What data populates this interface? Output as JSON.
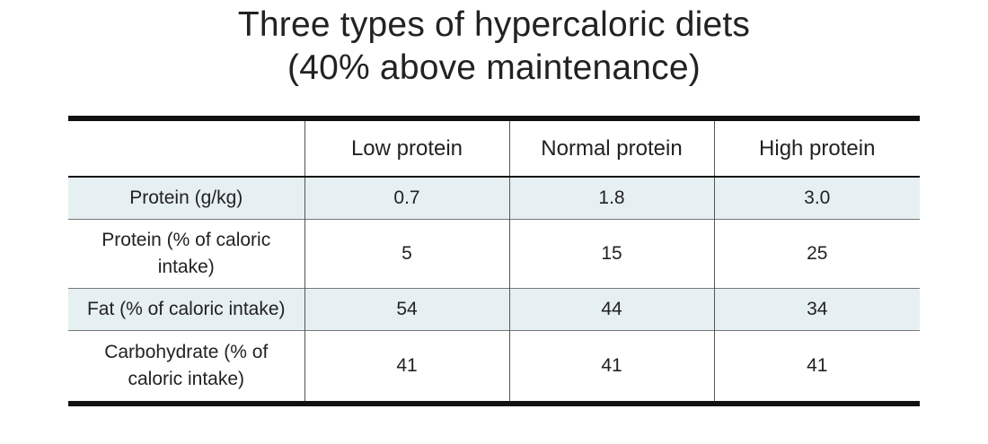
{
  "title": {
    "line1": "Three types of hypercaloric diets",
    "line2": "(40% above maintenance)"
  },
  "table": {
    "headers": [
      "",
      "Low protein",
      "Normal protein",
      "High protein"
    ],
    "rows": [
      {
        "label": "Protein (g/kg)",
        "values": [
          "0.7",
          "1.8",
          "3.0"
        ]
      },
      {
        "label": "Protein (% of caloric intake)",
        "values": [
          "5",
          "15",
          "25"
        ]
      },
      {
        "label": "Fat (% of caloric intake)",
        "values": [
          "54",
          "44",
          "34"
        ]
      },
      {
        "label": "Carbohydrate (% of caloric intake)",
        "values": [
          "41",
          "41",
          "41"
        ]
      }
    ]
  },
  "colors": {
    "row_shade": "#e6eff2",
    "rule": "#111111",
    "text": "#222222"
  }
}
